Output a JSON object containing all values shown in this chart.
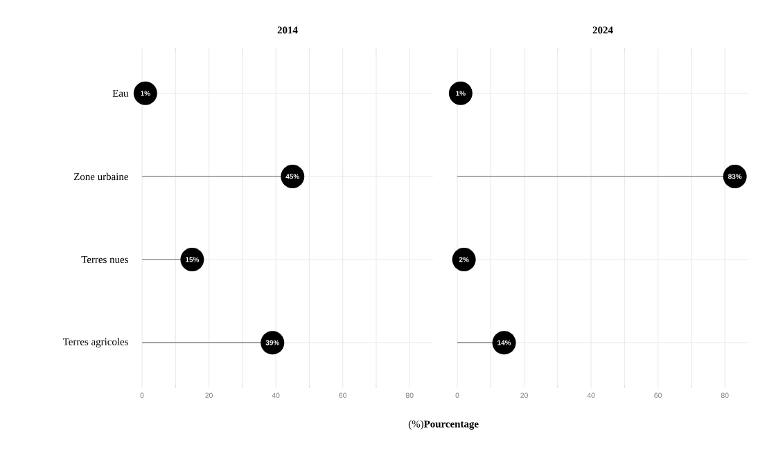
{
  "chart_data": [
    {
      "type": "lollipop",
      "orientation": "horizontal",
      "title": "2014",
      "xlabel": "(%)**Pourcentage**",
      "categories": [
        "Eau",
        "Zone urbaine",
        "Terres nues",
        "Terres agricoles"
      ],
      "values": [
        1,
        45,
        15,
        39
      ],
      "value_labels": [
        "1%",
        "45%",
        "15%",
        "39%"
      ],
      "color": "#000000",
      "marker": "circle",
      "xlim": [
        0,
        87
      ],
      "xticks": [
        0,
        20,
        40,
        60,
        80
      ],
      "grid": true
    },
    {
      "type": "lollipop",
      "orientation": "horizontal",
      "title": "2024",
      "categories": [
        null,
        null,
        null,
        null
      ],
      "values": [
        1,
        83,
        2,
        14
      ],
      "value_labels": [
        "1%",
        "83%",
        "2%",
        "14%"
      ],
      "color": "#000000",
      "marker": "circle",
      "xlim": [
        0,
        87
      ],
      "xticks": [
        0,
        20,
        40,
        60,
        80
      ],
      "grid": true
    }
  ]
}
